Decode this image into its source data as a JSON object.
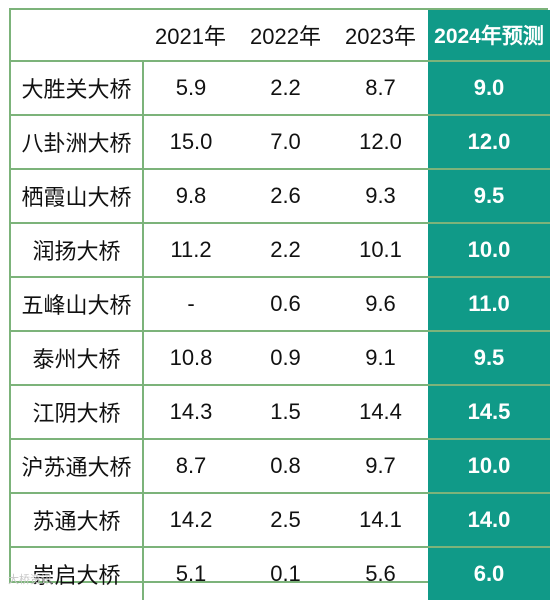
{
  "table": {
    "headers": [
      "",
      "2021年",
      "2022年",
      "2023年",
      "2024年预测"
    ],
    "rows": [
      {
        "name": "大胜关大桥",
        "y2021": "5.9",
        "y2022": "2.2",
        "y2023": "8.7",
        "forecast": "9.0"
      },
      {
        "name": "八卦洲大桥",
        "y2021": "15.0",
        "y2022": "7.0",
        "y2023": "12.0",
        "forecast": "12.0"
      },
      {
        "name": "栖霞山大桥",
        "y2021": "9.8",
        "y2022": "2.6",
        "y2023": "9.3",
        "forecast": "9.5"
      },
      {
        "name": "润扬大桥",
        "y2021": "11.2",
        "y2022": "2.2",
        "y2023": "10.1",
        "forecast": "10.0"
      },
      {
        "name": "五峰山大桥",
        "y2021": "-",
        "y2022": "0.6",
        "y2023": "9.6",
        "forecast": "11.0"
      },
      {
        "name": "泰州大桥",
        "y2021": "10.8",
        "y2022": "0.9",
        "y2023": "9.1",
        "forecast": "9.5"
      },
      {
        "name": "江阴大桥",
        "y2021": "14.3",
        "y2022": "1.5",
        "y2023": "14.4",
        "forecast": "14.5"
      },
      {
        "name": "沪苏通大桥",
        "y2021": "8.7",
        "y2022": "0.8",
        "y2023": "9.7",
        "forecast": "10.0"
      },
      {
        "name": "苏通大桥",
        "y2021": "14.2",
        "y2022": "2.5",
        "y2023": "14.1",
        "forecast": "14.0"
      },
      {
        "name": "崇启大桥",
        "y2021": "5.1",
        "y2022": "0.1",
        "y2023": "5.6",
        "forecast": "6.0"
      }
    ]
  },
  "watermark": "大桥资讯",
  "colors": {
    "border": "#7cb37a",
    "forecast_bg": "#109a88",
    "forecast_text": "#ffffff"
  }
}
